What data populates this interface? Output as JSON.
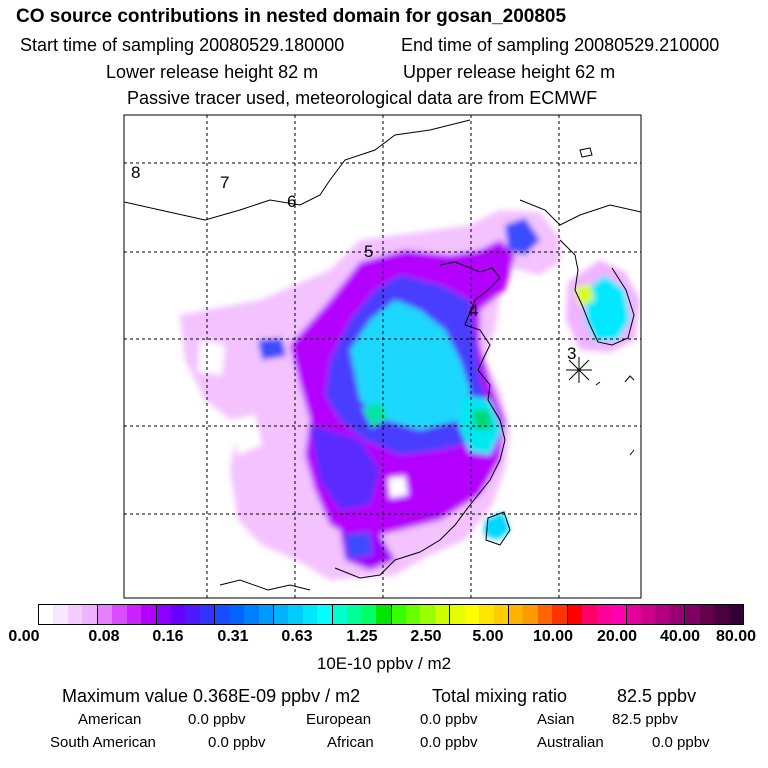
{
  "header": {
    "title": "CO  source contributions in nested domain for gosan_200805",
    "start_label": "Start time of sampling 20080529.180000",
    "end_label": "End time of sampling 20080529.210000",
    "lower_label": "Lower release height   82 m",
    "upper_label": "Upper release height   62 m",
    "note": "Passive tracer used, meteorological data are from ECMWF"
  },
  "map": {
    "contour_labels": [
      "8",
      "7",
      "6",
      "5",
      "4",
      "3"
    ],
    "receptor_marker": "receptor-star"
  },
  "colorbar": {
    "ticks": [
      "0.00",
      "0.08",
      "0.16",
      "0.31",
      "0.63",
      "1.25",
      "2.50",
      "5.00",
      "10.00",
      "20.00",
      "40.00",
      "80.00"
    ],
    "unit": "10E-10 ppbv / m2",
    "colors": [
      "#ffffff",
      "#fbe6ff",
      "#f6ccff",
      "#f0b3ff",
      "#e680ff",
      "#d94dff",
      "#cc22ff",
      "#b300ff",
      "#8c00ff",
      "#6600ff",
      "#4d1aff",
      "#3333ff",
      "#1a4dff",
      "#0066ff",
      "#0080ff",
      "#0099ff",
      "#00b3ff",
      "#00ccff",
      "#00e6ff",
      "#00ffff",
      "#00ffcc",
      "#00ff99",
      "#00ff66",
      "#00e600",
      "#33ff00",
      "#66ff00",
      "#99ff00",
      "#ccff00",
      "#e6ff00",
      "#ffff00",
      "#ffe600",
      "#ffcc00",
      "#ffb300",
      "#ff9900",
      "#ff6600",
      "#ff3300",
      "#ff0000",
      "#ff0066",
      "#ff0099",
      "#ff00b3",
      "#e6009e",
      "#cc008c",
      "#b30080",
      "#990073",
      "#800066",
      "#66004d",
      "#4d0040",
      "#330033"
    ]
  },
  "summary": {
    "max_label": "Maximum value  0.368E-09 ppbv / m2",
    "total_label": "Total mixing ratio",
    "total_value": "82.5 ppbv",
    "regions": [
      {
        "name": "American",
        "value": "0.0 ppbv"
      },
      {
        "name": "European",
        "value": "0.0 ppbv"
      },
      {
        "name": "Asian",
        "value": "82.5 ppbv"
      },
      {
        "name": "South American",
        "value": "0.0 ppbv"
      },
      {
        "name": "African",
        "value": "0.0 ppbv"
      },
      {
        "name": "Australian",
        "value": "0.0 ppbv"
      }
    ]
  }
}
